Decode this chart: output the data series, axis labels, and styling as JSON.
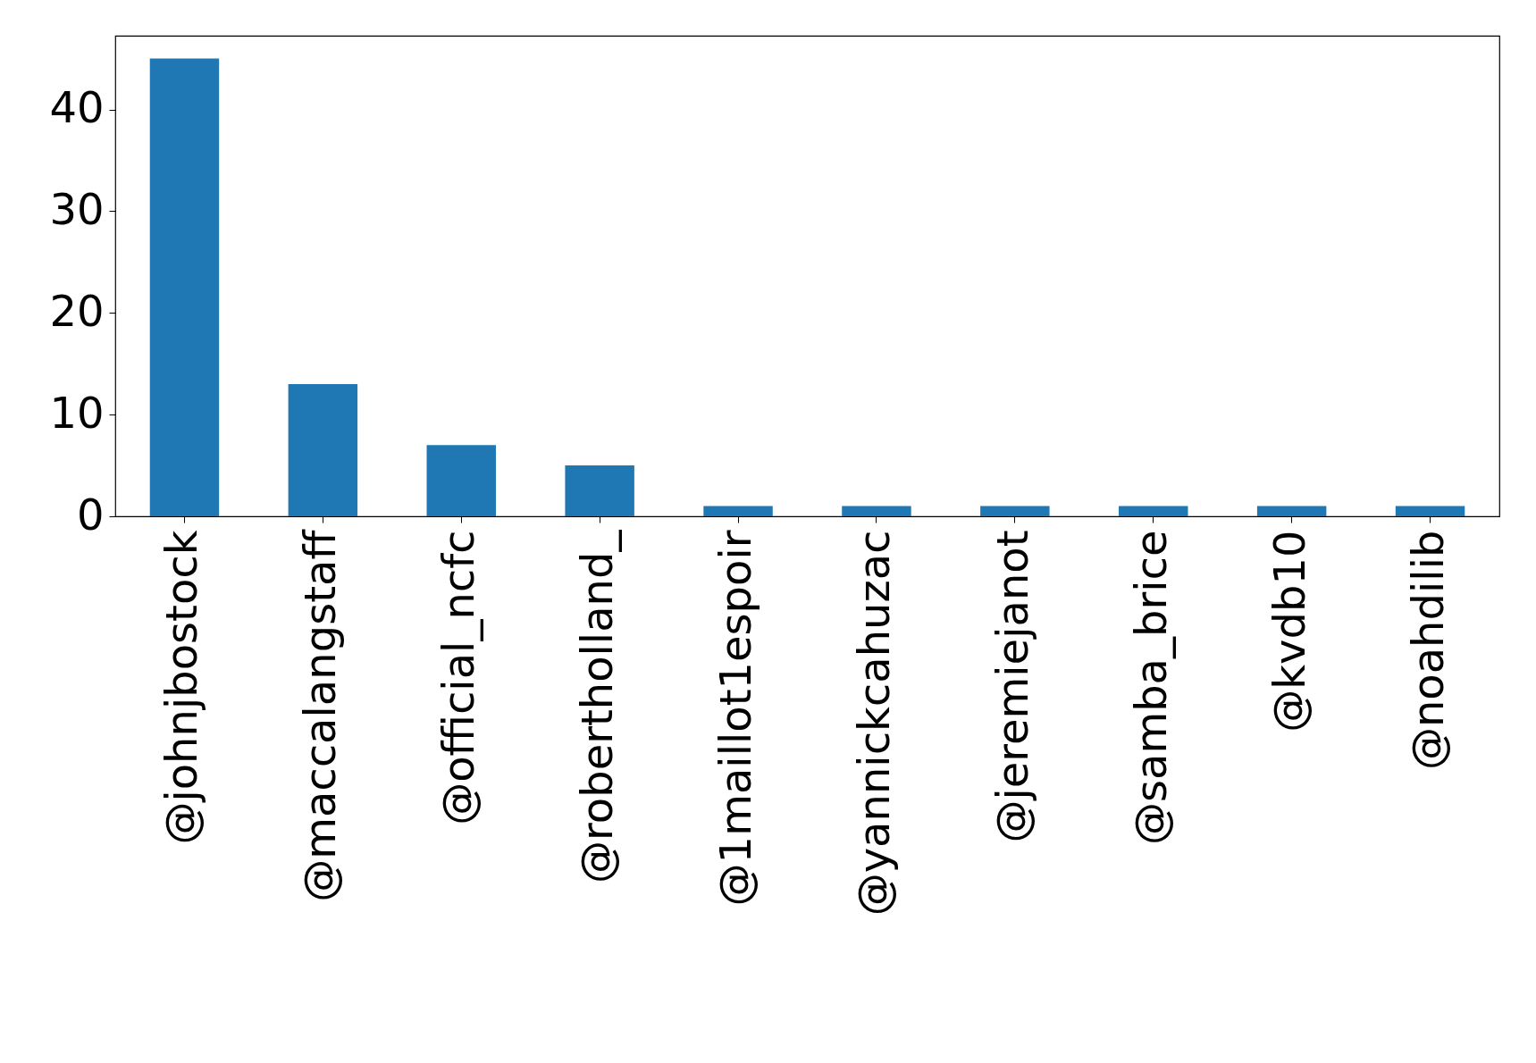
{
  "chart_data": {
    "type": "bar",
    "categories": [
      "@johnjbostock",
      "@maccalangstaff",
      "@official_ncfc",
      "@robertholland_",
      "@1maillot1espoir",
      "@yannickcahuzac",
      "@jeremiejanot",
      "@samba_brice",
      "@kvdb10",
      "@noahdilib"
    ],
    "values": [
      45,
      13,
      7,
      5,
      1,
      1,
      1,
      1,
      1,
      1
    ],
    "color": "#1f77b4",
    "ylim": [
      0,
      47.25
    ],
    "yticks": [
      0,
      10,
      20,
      30,
      40
    ],
    "grid": false
  }
}
